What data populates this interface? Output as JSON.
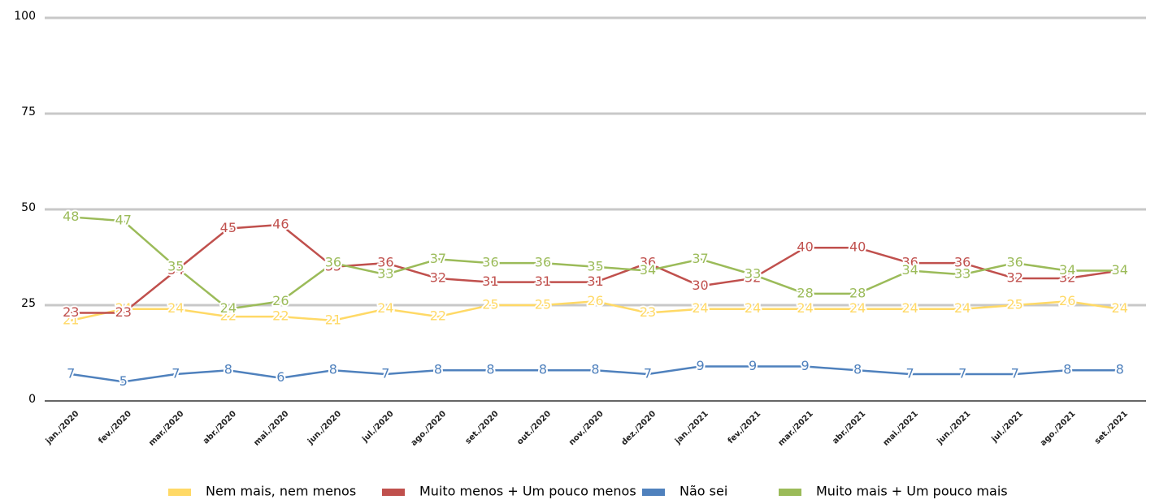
{
  "chart_data": {
    "type": "line",
    "categories": [
      "jan./2020",
      "fev./2020",
      "mar./2020",
      "abr./2020",
      "mai./2020",
      "jun./2020",
      "jul./2020",
      "ago./2020",
      "set./2020",
      "out./2020",
      "nov./2020",
      "dez./2020",
      "jan./2021",
      "fev./2021",
      "mar./2021",
      "abr./2021",
      "mai./2021",
      "jun./2021",
      "jul./2021",
      "ago./2021",
      "set./2021"
    ],
    "series": [
      {
        "name": "Nem mais, nem menos",
        "color": "#ffd966",
        "values": [
          21,
          24,
          24,
          22,
          22,
          21,
          24,
          22,
          25,
          25,
          26,
          23,
          24,
          24,
          24,
          24,
          24,
          24,
          25,
          26,
          24
        ]
      },
      {
        "name": "Muito menos + Um pouco menos",
        "color": "#c0504d",
        "values": [
          23,
          23,
          34,
          45,
          46,
          35,
          36,
          32,
          31,
          31,
          31,
          36,
          30,
          32,
          40,
          40,
          36,
          36,
          32,
          32,
          34
        ]
      },
      {
        "name": "Não sei",
        "color": "#4f81bd",
        "values": [
          7,
          5,
          7,
          8,
          6,
          8,
          7,
          8,
          8,
          8,
          8,
          7,
          9,
          9,
          9,
          8,
          7,
          7,
          7,
          8,
          8
        ]
      },
      {
        "name": "Muito mais + Um pouco mais",
        "color": "#9bbb59",
        "values": [
          48,
          47,
          35,
          24,
          26,
          36,
          33,
          37,
          36,
          36,
          35,
          34,
          37,
          33,
          28,
          28,
          34,
          33,
          36,
          34,
          34
        ]
      }
    ],
    "ylim": [
      0,
      100
    ],
    "yticks": [
      0,
      25,
      50,
      75,
      100
    ],
    "grid": true,
    "legend": "bottom"
  }
}
